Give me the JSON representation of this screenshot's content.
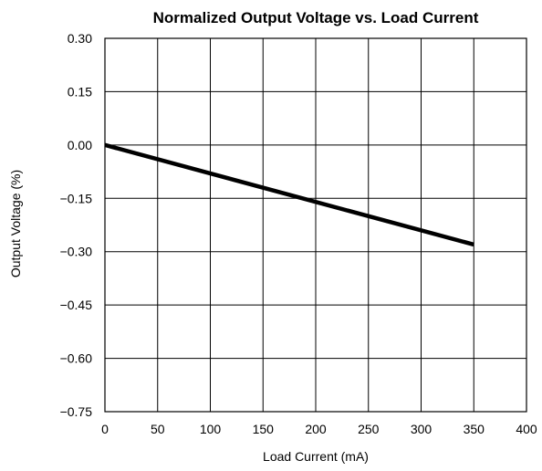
{
  "chart_data": {
    "type": "line",
    "title": "Normalized Output Voltage vs. Load Current",
    "xlabel": "Load Current (mA)",
    "ylabel": "Output Voltage (%)",
    "xlim": [
      0,
      400
    ],
    "ylim": [
      -0.75,
      0.3
    ],
    "grid": true,
    "x_ticks": [
      0,
      50,
      100,
      150,
      200,
      250,
      300,
      350,
      400
    ],
    "x_tick_labels": [
      "0",
      "50",
      "100",
      "150",
      "200",
      "250",
      "300",
      "350",
      "400"
    ],
    "y_ticks": [
      0.3,
      0.15,
      0.0,
      -0.15,
      -0.3,
      -0.45,
      -0.6,
      -0.75
    ],
    "y_tick_labels": [
      "0.30",
      "0.15",
      "0.00",
      "−0.15",
      "−0.30",
      "−0.45",
      "−0.60",
      "−0.75"
    ],
    "series": [
      {
        "x": [
          0,
          350
        ],
        "y": [
          0.0,
          -0.28
        ],
        "color": "#000000"
      }
    ]
  }
}
